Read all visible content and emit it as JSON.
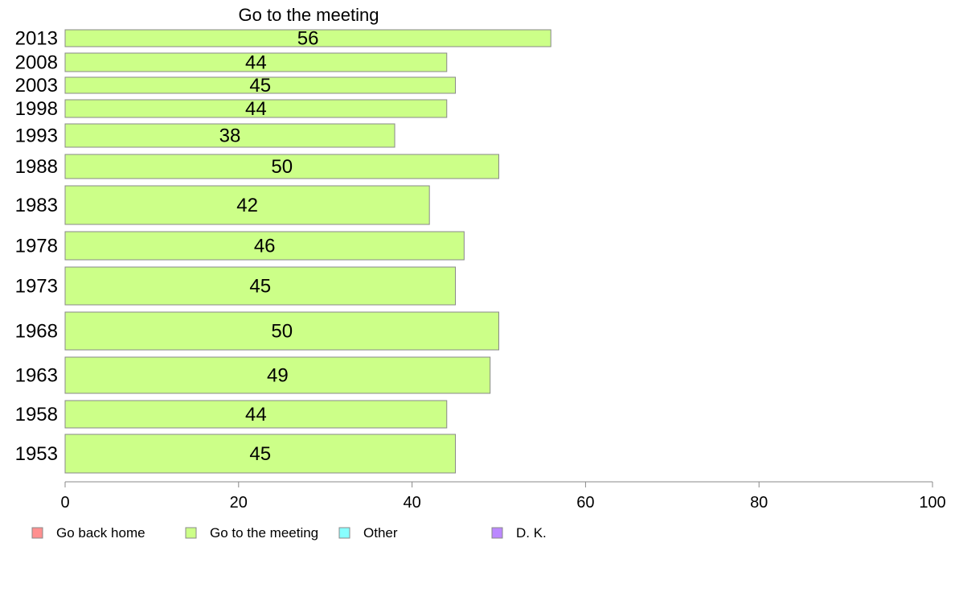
{
  "chart_data": {
    "type": "bar",
    "orientation": "horizontal",
    "title": "Go to the meeting",
    "categories": [
      "2013",
      "2008",
      "2003",
      "1998",
      "1993",
      "1988",
      "1983",
      "1978",
      "1973",
      "1968",
      "1963",
      "1958",
      "1953"
    ],
    "values": [
      56,
      44,
      45,
      44,
      38,
      50,
      42,
      46,
      45,
      50,
      49,
      44,
      45
    ],
    "value_labels": [
      "56",
      "44",
      "45",
      "44",
      "38",
      "50",
      "42",
      "46",
      "45",
      "50",
      "49",
      "44",
      "45"
    ],
    "xlim": [
      0,
      100
    ],
    "xticks": [
      "0",
      "20",
      "40",
      "60",
      "80",
      "100"
    ],
    "grid": false,
    "bar_color": "#ccff88",
    "legend": {
      "placement": "bottom-left",
      "entries": [
        {
          "name": "Go back home",
          "color": "#ff9090"
        },
        {
          "name": "Go to the meeting",
          "color": "#ccff88"
        },
        {
          "name": "Other",
          "color": "#88ffff"
        },
        {
          "name": "D. K.",
          "color": "#bb88ff"
        }
      ]
    }
  }
}
